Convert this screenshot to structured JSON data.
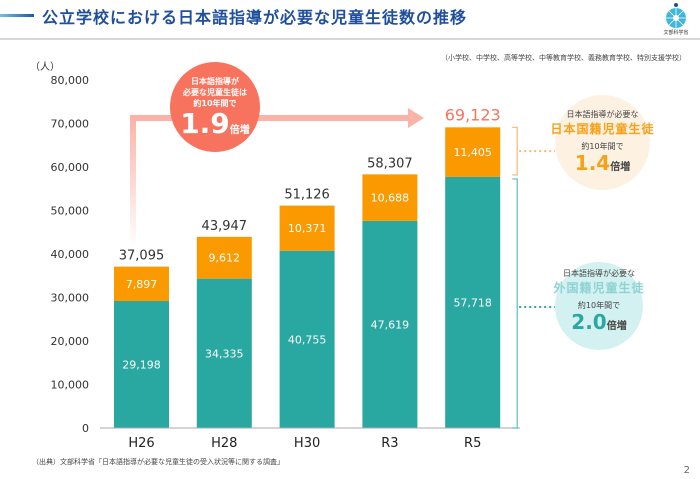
{
  "header": {
    "title": "公立学校における日本語指導が必要な児童生徒数の推移",
    "logo_text": "文部科学省",
    "scope_note": "（小学校、中学校、高等学校、中等教育学校、義務教育学校、特別支援学校）"
  },
  "colors": {
    "foreign": "#29a7a1",
    "japanese": "#fb9a00",
    "accent": "#f7735e",
    "title": "#1f4f9c"
  },
  "chart_data": {
    "type": "bar",
    "stacked": true,
    "title": "公立学校における日本語指導が必要な児童生徒数の推移",
    "ylabel": "（人）",
    "xlabel": "",
    "ylim": [
      0,
      80000
    ],
    "yticks": [
      "0",
      "10,000",
      "20,000",
      "30,000",
      "40,000",
      "50,000",
      "60,000",
      "70,000",
      "80,000"
    ],
    "ytick_values": [
      0,
      10000,
      20000,
      30000,
      40000,
      50000,
      60000,
      70000,
      80000
    ],
    "categories": [
      "H26",
      "H28",
      "H30",
      "R3",
      "R5"
    ],
    "series": [
      {
        "name": "外国籍児童生徒",
        "values": [
          29198,
          34335,
          40755,
          47619,
          57718
        ],
        "labels": [
          "29,198",
          "34,335",
          "40,755",
          "47,619",
          "57,718"
        ]
      },
      {
        "name": "日本国籍児童生徒",
        "values": [
          7897,
          9612,
          10371,
          10688,
          11405
        ],
        "labels": [
          "7,897",
          "9,612",
          "10,371",
          "10,688",
          "11,405"
        ]
      }
    ],
    "totals": [
      37095,
      43947,
      51126,
      58307,
      69123
    ],
    "total_labels": [
      "37,095",
      "43,947",
      "51,126",
      "58,307",
      "69,123"
    ],
    "grid": false,
    "legend": "none"
  },
  "annotations": {
    "main": {
      "line1": "日本語指導が",
      "line2": "必要な児童生徒は",
      "line3": "約10年間で",
      "value": "1.9",
      "suffix": "倍増"
    },
    "japanese": {
      "line1": "日本語指導が必要な",
      "highlight": "日本国籍児童生徒",
      "line3": "約10年間で",
      "value": "1.4",
      "suffix": "倍増"
    },
    "foreign": {
      "line1": "日本語指導が必要な",
      "highlight": "外国籍児童生徒",
      "line3": "約10年間で",
      "value": "2.0",
      "suffix": "倍増"
    }
  },
  "footer": {
    "source": "（出典）文部科学省「日本語指導が必要な児童生徒の受入状況等に関する調査」",
    "page_number": "2"
  }
}
